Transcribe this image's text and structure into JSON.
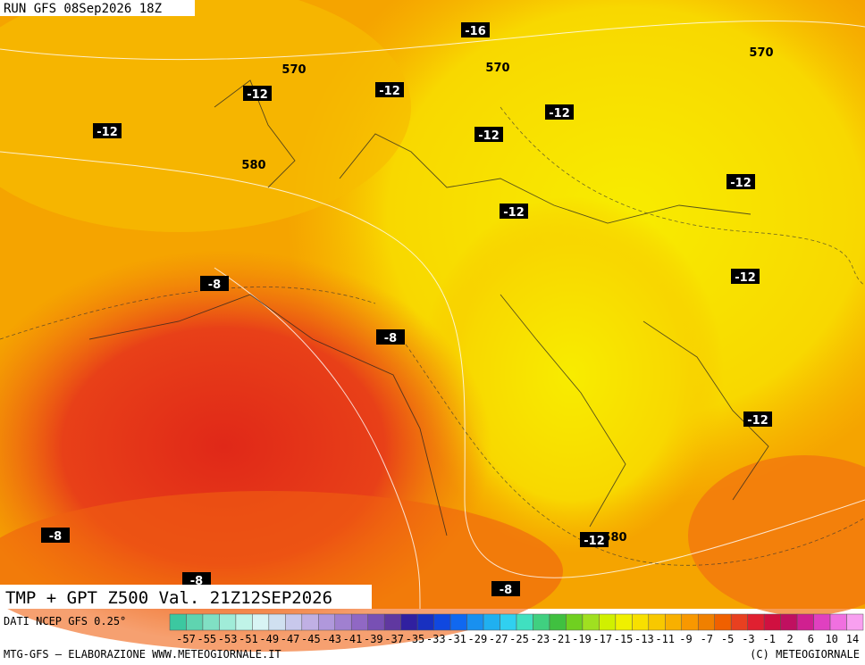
{
  "header": {
    "run": "RUN GFS 08Sep2026 18Z",
    "title": "TMP + GPT Z500 Val. 21Z12SEP2026"
  },
  "footer": {
    "source": "DATI NCEP GFS 0.25°",
    "credit": "MTG-GFS — ELABORAZIONE WWW.METEOGIORNALE.IT",
    "copyright": "(C) METEOGIORNALE"
  },
  "contour_labels": [
    -16,
    570,
    570,
    570,
    -12,
    -12,
    -12,
    -12,
    -12,
    580,
    -12,
    -12,
    -8,
    -12,
    -8,
    -12,
    -8,
    -12,
    580,
    -8,
    -8
  ],
  "scale": {
    "labels": [
      -57,
      -55,
      -53,
      -51,
      -49,
      -47,
      -45,
      -43,
      -41,
      -39,
      -37,
      -35,
      -33,
      -31,
      -29,
      -27,
      -25,
      -23,
      -21,
      -19,
      -17,
      -15,
      -13,
      -11,
      -9,
      -7,
      -5,
      -3,
      -1,
      2,
      6,
      10,
      14
    ],
    "colors": [
      "#3cc8a0",
      "#5fd4b0",
      "#80e0c4",
      "#a0ecd8",
      "#c0f4e8",
      "#d8f4f4",
      "#d0e0f0",
      "#c8c8ec",
      "#c0b0e4",
      "#b098dc",
      "#a080d0",
      "#9068c4",
      "#7850b4",
      "#6038a0",
      "#3020a0",
      "#1830c0",
      "#1048e0",
      "#1068f0",
      "#1890f0",
      "#20b0f0",
      "#30d0f0",
      "#40e0c0",
      "#40d080",
      "#40c040",
      "#70d020",
      "#a0e020",
      "#d0f000",
      "#f0f000",
      "#f8e000",
      "#f8c800",
      "#f8b000",
      "#f89800",
      "#f08000",
      "#f06000",
      "#e84020",
      "#e02030",
      "#d01040",
      "#c01060",
      "#d02090",
      "#e040c0",
      "#f070e0",
      "#f8a0f0"
    ]
  }
}
